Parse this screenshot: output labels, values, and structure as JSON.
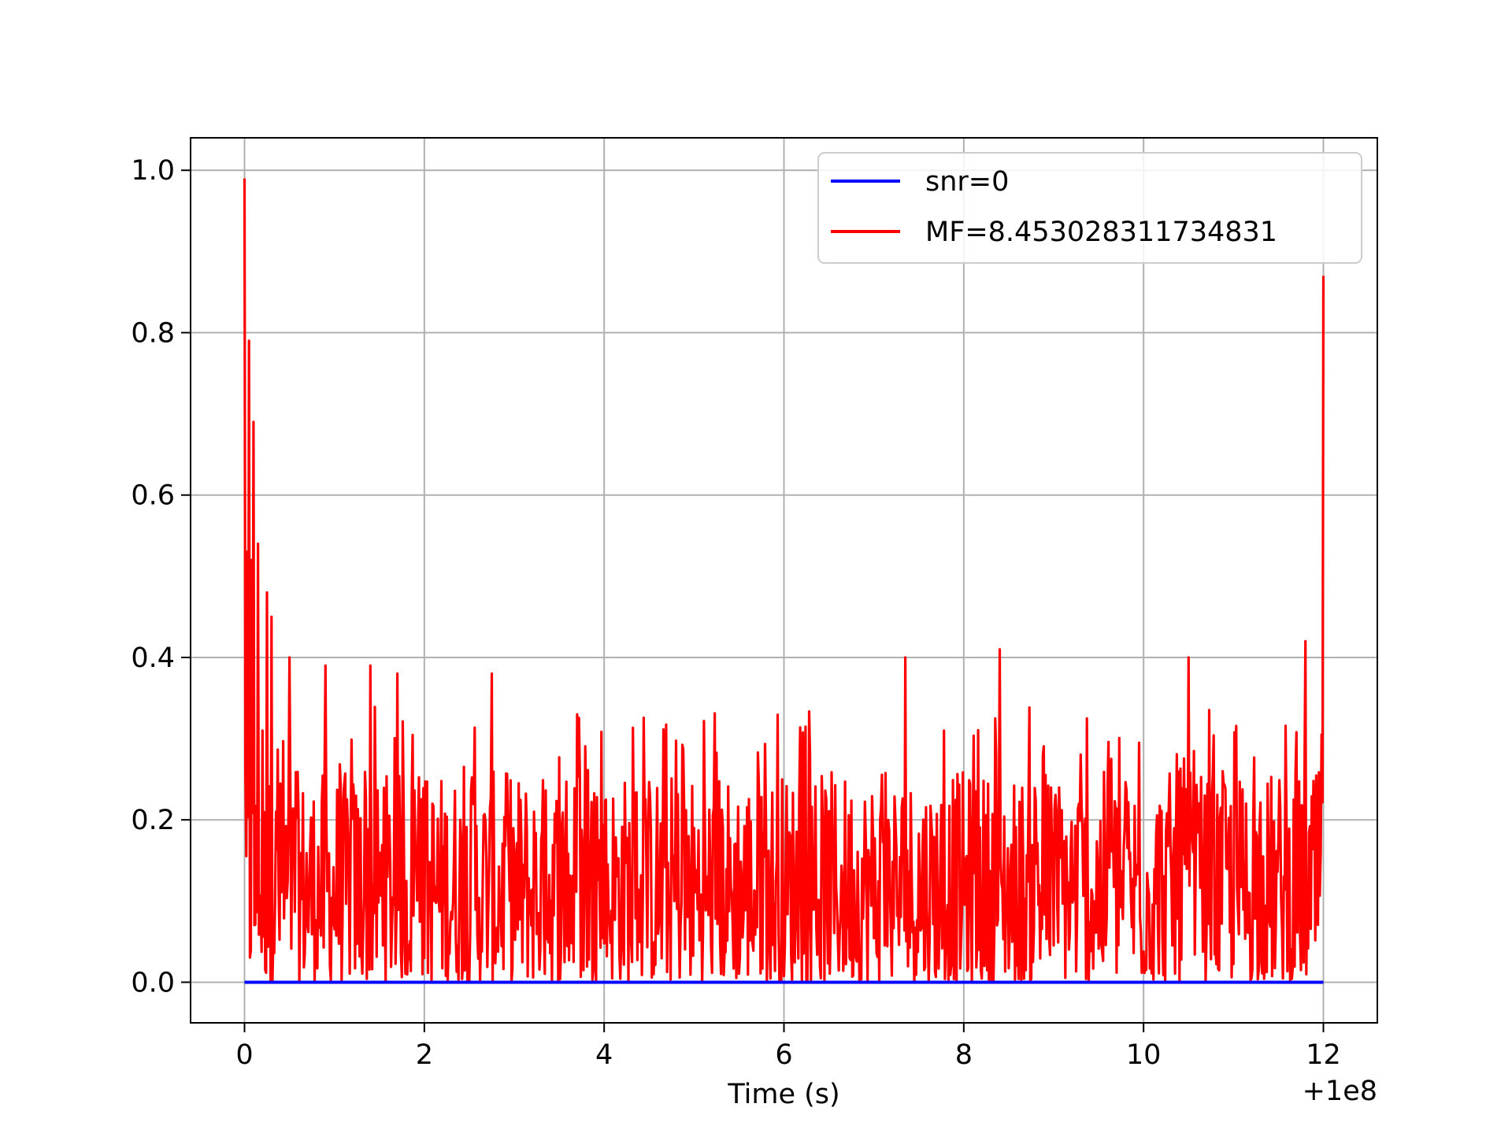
{
  "chart_data": {
    "type": "line",
    "title": "",
    "xlabel": "Time (s)",
    "ylabel": "",
    "x_offset_text": "+1e8",
    "xlim": [
      -0.6,
      12.6
    ],
    "ylim": [
      -0.05,
      1.04
    ],
    "xticks": [
      0,
      2,
      4,
      6,
      8,
      10,
      12
    ],
    "xtick_labels": [
      "0",
      "2",
      "4",
      "6",
      "8",
      "10",
      "12"
    ],
    "yticks": [
      0.0,
      0.2,
      0.4,
      0.6,
      0.8,
      1.0
    ],
    "ytick_labels": [
      "0.0",
      "0.2",
      "0.4",
      "0.6",
      "0.8",
      "1.0"
    ],
    "grid": true,
    "legend_position": "top-right",
    "series": [
      {
        "name": "snr=0",
        "color": "#0000ff",
        "x": [
          0,
          12
        ],
        "y": [
          0,
          0
        ]
      },
      {
        "name": "MF=8.453028311734831",
        "color": "#ff0000",
        "x_start": 0,
        "x_end": 12,
        "baseline_mean": 0.11,
        "noise_min": 0.0,
        "noise_max": 0.42,
        "sample_count": 1200,
        "peaks": [
          {
            "x": 0.0,
            "y": 0.99
          },
          {
            "x": 0.03,
            "y": 0.53
          },
          {
            "x": 0.05,
            "y": 0.79
          },
          {
            "x": 0.08,
            "y": 0.52
          },
          {
            "x": 0.1,
            "y": 0.69
          },
          {
            "x": 0.15,
            "y": 0.54
          },
          {
            "x": 0.2,
            "y": 0.31
          },
          {
            "x": 0.25,
            "y": 0.48
          },
          {
            "x": 0.3,
            "y": 0.45
          },
          {
            "x": 0.5,
            "y": 0.4
          },
          {
            "x": 0.9,
            "y": 0.39
          },
          {
            "x": 1.4,
            "y": 0.39
          },
          {
            "x": 1.7,
            "y": 0.38
          },
          {
            "x": 2.75,
            "y": 0.38
          },
          {
            "x": 7.35,
            "y": 0.4
          },
          {
            "x": 8.4,
            "y": 0.41
          },
          {
            "x": 10.5,
            "y": 0.4
          },
          {
            "x": 11.8,
            "y": 0.42
          },
          {
            "x": 12.0,
            "y": 0.87
          }
        ]
      }
    ]
  }
}
